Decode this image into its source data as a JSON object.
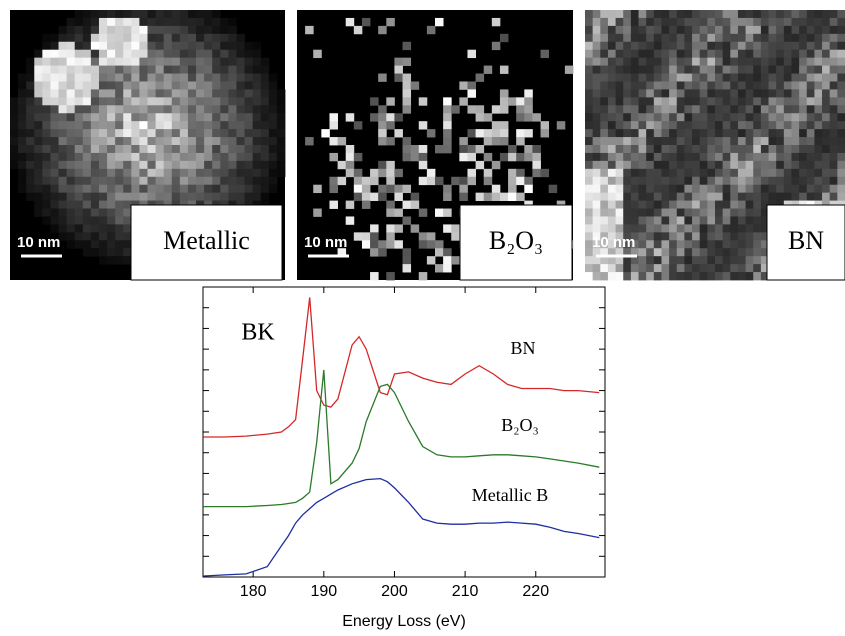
{
  "panels": [
    {
      "label": "Metallic",
      "scale_bar": "10 nm"
    },
    {
      "label": "B₂O₃",
      "scale_bar": "10 nm"
    },
    {
      "label": "BN",
      "scale_bar": "10 nm"
    }
  ],
  "chart_data": {
    "type": "line",
    "xlabel": "Energy Loss (eV)",
    "annotations": [
      "BK",
      "BN",
      "B₂O₃",
      "Metallic B"
    ],
    "x": [
      173,
      176,
      179,
      182,
      184,
      185,
      186,
      187,
      188,
      189,
      190,
      191,
      192,
      194,
      195,
      196,
      198,
      199,
      200,
      202,
      204,
      206,
      208,
      210,
      212,
      214,
      216,
      218,
      220,
      222,
      224,
      226,
      229
    ],
    "series": [
      {
        "name": "BN",
        "color": "#d62728",
        "values": [
          6.76,
          6.76,
          6.8,
          6.9,
          7.0,
          7.25,
          7.6,
          10.5,
          13.5,
          9.0,
          8.3,
          8.2,
          8.6,
          11.2,
          11.6,
          11.0,
          8.9,
          8.8,
          9.8,
          9.9,
          9.6,
          9.4,
          9.3,
          9.8,
          10.2,
          9.8,
          9.3,
          9.1,
          9.1,
          9.1,
          9.0,
          9.0,
          8.9
        ]
      },
      {
        "name": "B₂O₃",
        "color": "#2a7a2a",
        "values": [
          3.4,
          3.4,
          3.4,
          3.45,
          3.5,
          3.55,
          3.6,
          3.8,
          4.1,
          6.5,
          10.0,
          4.5,
          4.7,
          5.5,
          6.2,
          7.5,
          9.2,
          9.3,
          8.9,
          7.5,
          6.3,
          5.9,
          5.8,
          5.8,
          5.85,
          5.9,
          5.9,
          5.85,
          5.8,
          5.7,
          5.6,
          5.5,
          5.3
        ]
      },
      {
        "name": "Metallic B",
        "color": "#1f2fa0",
        "values": [
          0.05,
          0.1,
          0.15,
          0.5,
          1.5,
          2.0,
          2.6,
          3.0,
          3.3,
          3.6,
          3.8,
          4.0,
          4.2,
          4.5,
          4.6,
          4.7,
          4.75,
          4.6,
          4.3,
          3.6,
          2.8,
          2.6,
          2.55,
          2.55,
          2.6,
          2.6,
          2.65,
          2.6,
          2.55,
          2.4,
          2.2,
          2.1,
          1.9
        ]
      }
    ],
    "xlim": [
      172.9,
      229.8
    ],
    "xticks": [
      180,
      190,
      200,
      210,
      220
    ],
    "ylim": [
      0,
      14
    ],
    "yticks": [
      1,
      2,
      3,
      4,
      5,
      6,
      7,
      8,
      9,
      10,
      11,
      12,
      13
    ]
  }
}
